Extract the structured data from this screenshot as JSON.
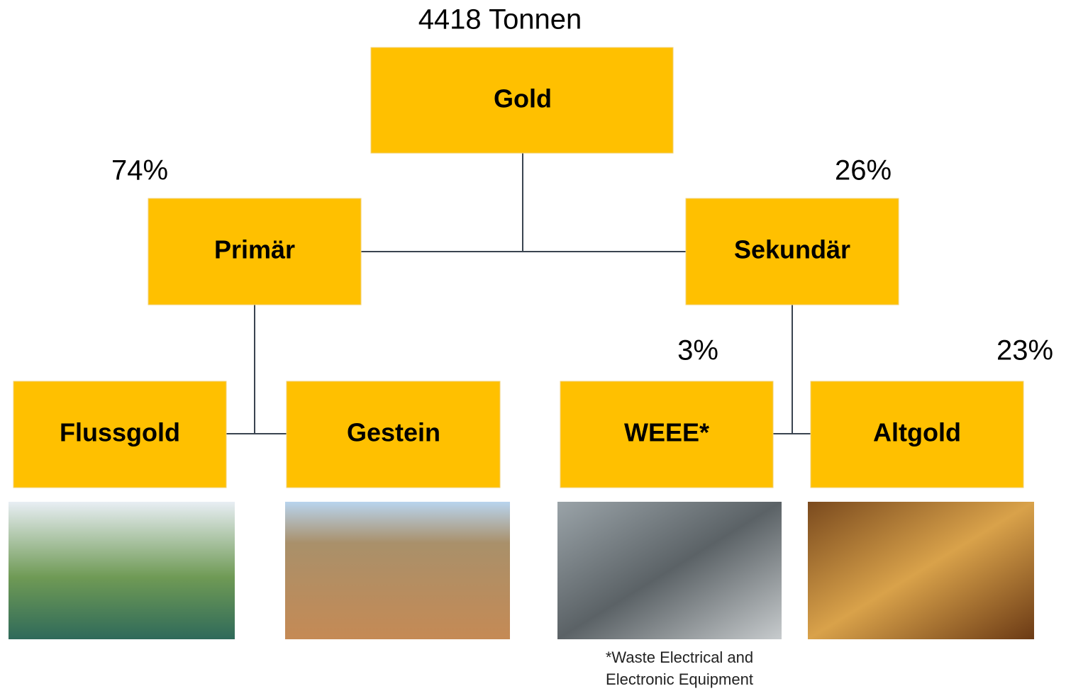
{
  "root": {
    "label": "Gold",
    "amount": "4418 Tonnen"
  },
  "nodes": [
    {
      "label": "Primär",
      "share": "74%"
    },
    {
      "label": "Sekundär",
      "share": "26%"
    },
    {
      "label": "Flussgold"
    },
    {
      "label": "Gestein"
    },
    {
      "label": "WEEE*",
      "share": "3%"
    },
    {
      "label": "Altgold",
      "share": "23%"
    }
  ],
  "footnote": [
    "*Waste Electrical and",
    "Electronic Equipment"
  ]
}
